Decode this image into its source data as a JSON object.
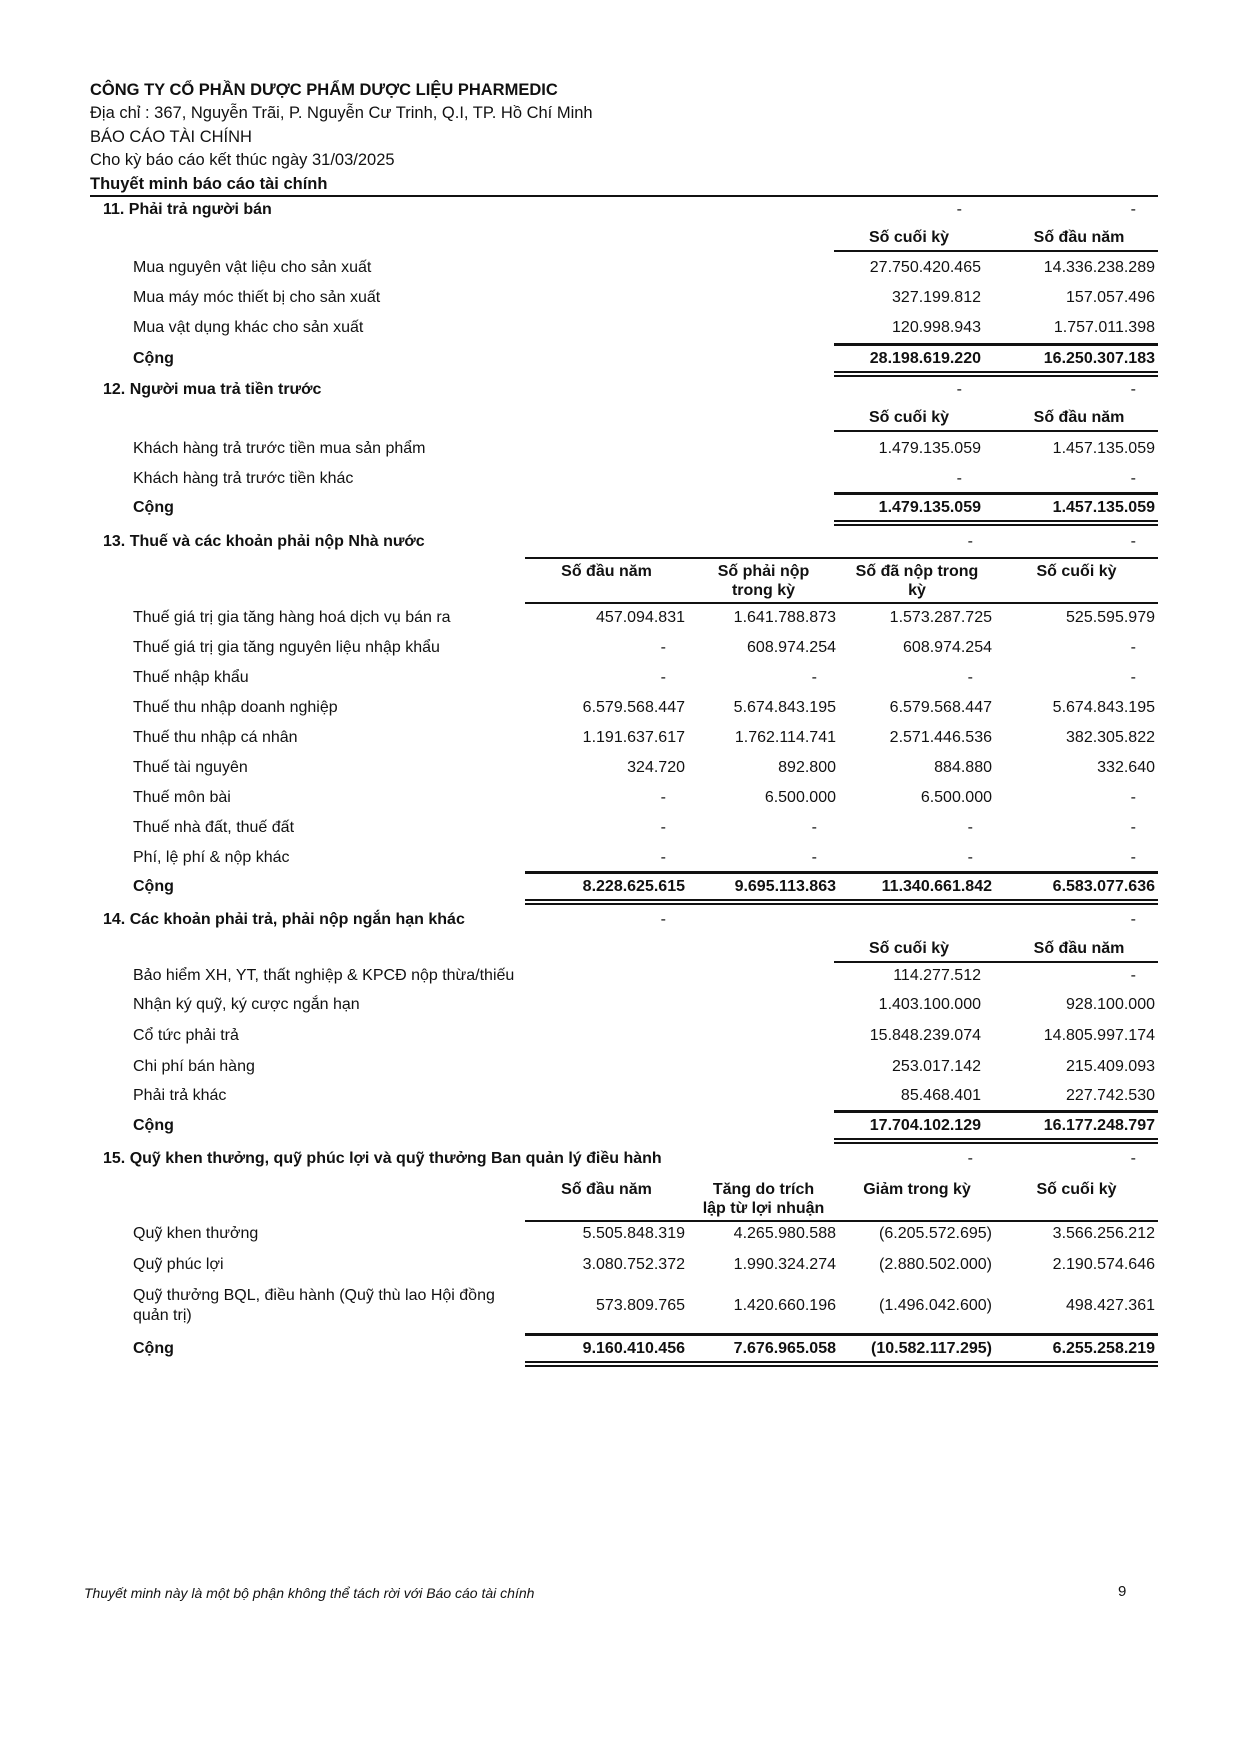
{
  "header": {
    "company": "CÔNG TY CỔ PHẦN DƯỢC PHẨM DƯỢC LIỆU PHARMEDIC",
    "address": "Địa chỉ : 367, Nguyễn Trãi, P. Nguyễn Cư Trinh, Q.I, TP. Hồ Chí Minh",
    "report_title": "BÁO CÁO TÀI CHÍNH",
    "period": "Cho kỳ báo cáo kết thúc ngày 31/03/2025",
    "section_title": "Thuyết minh báo cáo tài chính"
  },
  "sections": [
    {
      "title": "11. Phải trả người bán",
      "heading_values": [
        "-",
        "-"
      ],
      "columns": [
        "Số cuối kỳ",
        "Số đầu năm"
      ],
      "rows": [
        {
          "label": "Mua nguyên vật liệu cho sản xuất",
          "values": [
            "27.750.420.465",
            "14.336.238.289"
          ]
        },
        {
          "label": "Mua máy móc thiết bị cho sản xuất",
          "values": [
            "327.199.812",
            "157.057.496"
          ]
        },
        {
          "label": "Mua vật dụng khác cho sản xuất",
          "values": [
            "120.998.943",
            "1.757.011.398"
          ]
        }
      ],
      "total": {
        "label": "Cộng",
        "values": [
          "28.198.619.220",
          "16.250.307.183"
        ]
      }
    },
    {
      "title": "12. Người mua  trả tiền trước",
      "heading_values": [
        "-",
        "-"
      ],
      "columns": [
        "Số cuối kỳ",
        "Số đầu năm"
      ],
      "rows": [
        {
          "label": "Khách hàng trả trước tiền mua sản phẩm",
          "values": [
            "1.479.135.059",
            "1.457.135.059"
          ]
        },
        {
          "label": "Khách hàng trả trước tiền khác",
          "values": [
            "-",
            "-"
          ]
        }
      ],
      "total": {
        "label": "Cộng",
        "values": [
          "1.479.135.059",
          "1.457.135.059"
        ]
      }
    },
    {
      "title": "13. Thuế và các khoản phải nộp Nhà nước",
      "heading_values": [
        "",
        "",
        "-",
        "-"
      ],
      "columns": [
        "Số đầu năm",
        "Số phải nộp trong kỳ",
        "Số đã nộp trong kỳ",
        "Số cuối kỳ"
      ],
      "rows": [
        {
          "label": "Thuế giá trị gia tăng hàng hoá dịch vụ bán ra",
          "values": [
            "457.094.831",
            "1.641.788.873",
            "1.573.287.725",
            "525.595.979"
          ]
        },
        {
          "label": "Thuế giá trị gia tăng nguyên liệu nhập khẩu",
          "values": [
            "-",
            "608.974.254",
            "608.974.254",
            "-"
          ]
        },
        {
          "label": "Thuế nhập khẩu",
          "values": [
            "-",
            "-",
            "-",
            "-"
          ]
        },
        {
          "label": "Thuế thu nhập doanh nghiệp",
          "values": [
            "6.579.568.447",
            "5.674.843.195",
            "6.579.568.447",
            "5.674.843.195"
          ]
        },
        {
          "label": "Thuế thu nhập cá nhân",
          "values": [
            "1.191.637.617",
            "1.762.114.741",
            "2.571.446.536",
            "382.305.822"
          ]
        },
        {
          "label": "Thuế tài nguyên",
          "values": [
            "324.720",
            "892.800",
            "884.880",
            "332.640"
          ]
        },
        {
          "label": "Thuế môn bài",
          "values": [
            "-",
            "6.500.000",
            "6.500.000",
            "-"
          ]
        },
        {
          "label": "Thuế nhà đất, thuế đất",
          "values": [
            "-",
            "-",
            "-",
            "-"
          ]
        },
        {
          "label": "Phí, lệ phí & nộp khác",
          "values": [
            "-",
            "-",
            "-",
            "-"
          ]
        }
      ],
      "total": {
        "label": "Cộng",
        "values": [
          "8.228.625.615",
          "9.695.113.863",
          "11.340.661.842",
          "6.583.077.636"
        ]
      }
    },
    {
      "title": "14. Các khoản phải trả, phải nộp ngắn hạn khác",
      "heading_values": [
        "-",
        "",
        "",
        "-"
      ],
      "columns": [
        "Số cuối kỳ",
        "Số đầu năm"
      ],
      "rows": [
        {
          "label": "Bảo hiểm XH, YT, thất nghiệp & KPCĐ nộp thừa/thiếu",
          "values": [
            "114.277.512",
            "-"
          ]
        },
        {
          "label": "Nhận ký quỹ, ký cược ngắn hạn",
          "values": [
            "1.403.100.000",
            "928.100.000"
          ]
        },
        {
          "label": "Cổ tức phải trả",
          "values": [
            "15.848.239.074",
            "14.805.997.174"
          ]
        },
        {
          "label": "Chi phí bán hàng",
          "values": [
            "253.017.142",
            "215.409.093"
          ]
        },
        {
          "label": "Phải trả khác",
          "values": [
            "85.468.401",
            "227.742.530"
          ]
        }
      ],
      "total": {
        "label": "Cộng",
        "values": [
          "17.704.102.129",
          "16.177.248.797"
        ]
      }
    },
    {
      "title": "15. Quỹ khen thưởng, quỹ phúc lợi và quỹ thưởng Ban quản lý điều hành",
      "heading_values": [
        "",
        "",
        "-",
        "-"
      ],
      "columns": [
        "Số đầu năm",
        "Tăng do trích lập từ lợi nhuận",
        "Giảm trong kỳ",
        "Số cuối kỳ"
      ],
      "rows": [
        {
          "label": "Quỹ khen thưởng",
          "values": [
            "5.505.848.319",
            "4.265.980.588",
            "(6.205.572.695)",
            "3.566.256.212"
          ]
        },
        {
          "label": "Quỹ phúc lợi",
          "values": [
            "3.080.752.372",
            "1.990.324.274",
            "(2.880.502.000)",
            "2.190.574.646"
          ]
        },
        {
          "label": "Quỹ thưởng BQL, điều hành (Quỹ thù lao Hội đồng quản trị)",
          "values": [
            "573.809.765",
            "1.420.660.196",
            "(1.496.042.600)",
            "498.427.361"
          ]
        }
      ],
      "total": {
        "label": "Cộng",
        "values": [
          "9.160.410.456",
          "7.676.965.058",
          "(10.582.117.295)",
          "6.255.258.219"
        ]
      }
    }
  ],
  "footer": {
    "note": "Thuyết minh này là một bộ phận không thể tách rời với Báo cáo tài chính",
    "page_number": "9"
  }
}
